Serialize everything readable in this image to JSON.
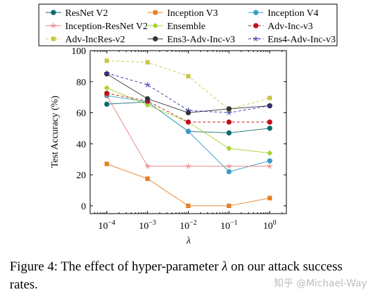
{
  "chart_data": {
    "type": "line",
    "xlabel": "λ",
    "ylabel": "Test Accuracy (%)",
    "x_scale": "log",
    "x": [
      0.0001,
      0.001,
      0.01,
      0.1,
      1
    ],
    "x_tick_labels": [
      {
        "base": "10",
        "exp": "−4"
      },
      {
        "base": "10",
        "exp": "−3"
      },
      {
        "base": "10",
        "exp": "−2"
      },
      {
        "base": "10",
        "exp": "−1"
      },
      {
        "base": "10",
        "exp": "0"
      }
    ],
    "ylim": [
      -5,
      100
    ],
    "y_ticks": [
      0,
      20,
      40,
      60,
      80,
      100
    ],
    "legend_position": "top",
    "series": [
      {
        "name": "ResNet V2",
        "color": "#0b6b6b",
        "marker": "circle",
        "dashed": false,
        "values": [
          65.5,
          67,
          48,
          47,
          50
        ]
      },
      {
        "name": "Inception V3",
        "color": "#e67e22",
        "marker": "square",
        "dashed": false,
        "values": [
          27,
          17.5,
          0,
          0,
          5
        ]
      },
      {
        "name": "Inception V4",
        "color": "#3a9cc6",
        "marker": "circle",
        "dashed": false,
        "values": [
          71,
          67,
          48,
          22,
          29
        ]
      },
      {
        "name": "Inception-ResNet V2",
        "color": "#ef7a7a",
        "marker": "star",
        "dashed": false,
        "values": [
          71,
          25.5,
          25.5,
          25.5,
          25.5
        ]
      },
      {
        "name": "Ensemble",
        "color": "#a5d22d",
        "marker": "diamond",
        "dashed": false,
        "values": [
          76,
          65,
          54,
          37,
          34
        ]
      },
      {
        "name": "Adv-Inc-v3",
        "color": "#c0101a",
        "marker": "circle",
        "dashed": true,
        "values": [
          72.5,
          67.5,
          54,
          54,
          54
        ]
      },
      {
        "name": "Adv-IncRes-v2",
        "color": "#c8c84a",
        "marker": "square",
        "dashed": true,
        "values": [
          93.5,
          92.5,
          83.5,
          62,
          69.5
        ]
      },
      {
        "name": "Ens3-Adv-Inc-v3",
        "color": "#333333",
        "marker": "circle",
        "dashed": false,
        "values": [
          85,
          69,
          60,
          62.5,
          64.5
        ]
      },
      {
        "name": "Ens4-Adv-Inc-v3",
        "color": "#3030aa",
        "marker": "star",
        "dashed": true,
        "values": [
          85.5,
          78,
          61.5,
          60,
          64.5
        ]
      }
    ]
  },
  "caption": {
    "lead": "Figure 4:  The effect of hyper-parameter ",
    "symbol": "λ",
    "rest": " on our attack success rates."
  },
  "watermark": "知乎 @Michael-Way"
}
